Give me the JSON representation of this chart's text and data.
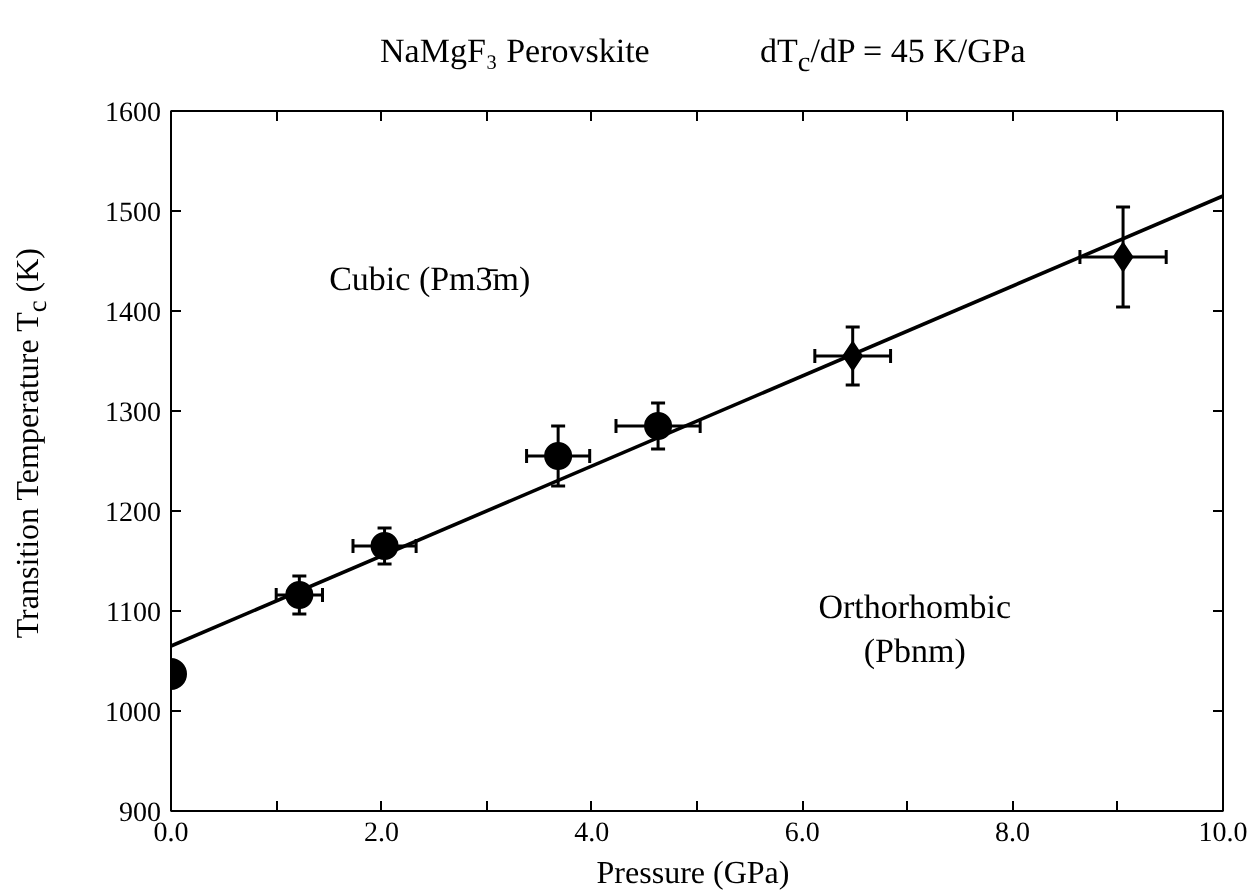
{
  "chart_data": {
    "type": "scatter",
    "title": "NaMgF₃ Perovskite",
    "xlabel": "Pressure  (GPa)",
    "ylabel": "Transition Temperature T$_{c}$ (K)",
    "annotations": [
      "dT$_{c}$/dP = 45 K/GPa",
      "Cubic  (Pm3̄m)",
      "Orthorhombic\n(Pbnm)"
    ],
    "series": [
      {
        "color": "#000000",
        "marker": "circle",
        "x": [
          0.0
        ],
        "values": [
          1037
        ]
      },
      {
        "color": "#000000",
        "marker": "circle",
        "x": [
          1.22,
          2.03,
          3.68,
          4.63
        ],
        "values": [
          1116,
          1165,
          1255,
          1285
        ],
        "errors": [
          19,
          18,
          30,
          23
        ],
        "xerrors": [
          0.22,
          0.3,
          0.3,
          0.4
        ]
      },
      {
        "color": "#000000",
        "marker": "diamond",
        "x": [
          6.48,
          9.05
        ],
        "values": [
          1355,
          1454
        ],
        "errors": [
          29,
          50
        ],
        "xerrors": [
          0.36,
          0.41
        ]
      },
      {
        "type": "line",
        "color": "#000000",
        "marker": "none",
        "line_style": "solid",
        "x": [
          0,
          10
        ],
        "values": [
          1065,
          1515
        ]
      }
    ],
    "xlim": [
      0,
      10
    ],
    "ylim": [
      900,
      1600
    ],
    "xticks": [
      {
        "value": 0,
        "label": "0.0"
      },
      {
        "value": 1,
        "label": null
      },
      {
        "value": 2,
        "label": "2.0"
      },
      {
        "value": 3,
        "label": null
      },
      {
        "value": 4,
        "label": "4.0"
      },
      {
        "value": 5,
        "label": null
      },
      {
        "value": 6,
        "label": "6.0"
      },
      {
        "value": 7,
        "label": null
      },
      {
        "value": 8,
        "label": "8.0"
      },
      {
        "value": 9,
        "label": null
      },
      {
        "value": 10,
        "label": "10.0"
      }
    ],
    "yticks": [
      900,
      1000,
      1100,
      1200,
      1300,
      1400,
      1500,
      1600
    ],
    "grid": false
  }
}
